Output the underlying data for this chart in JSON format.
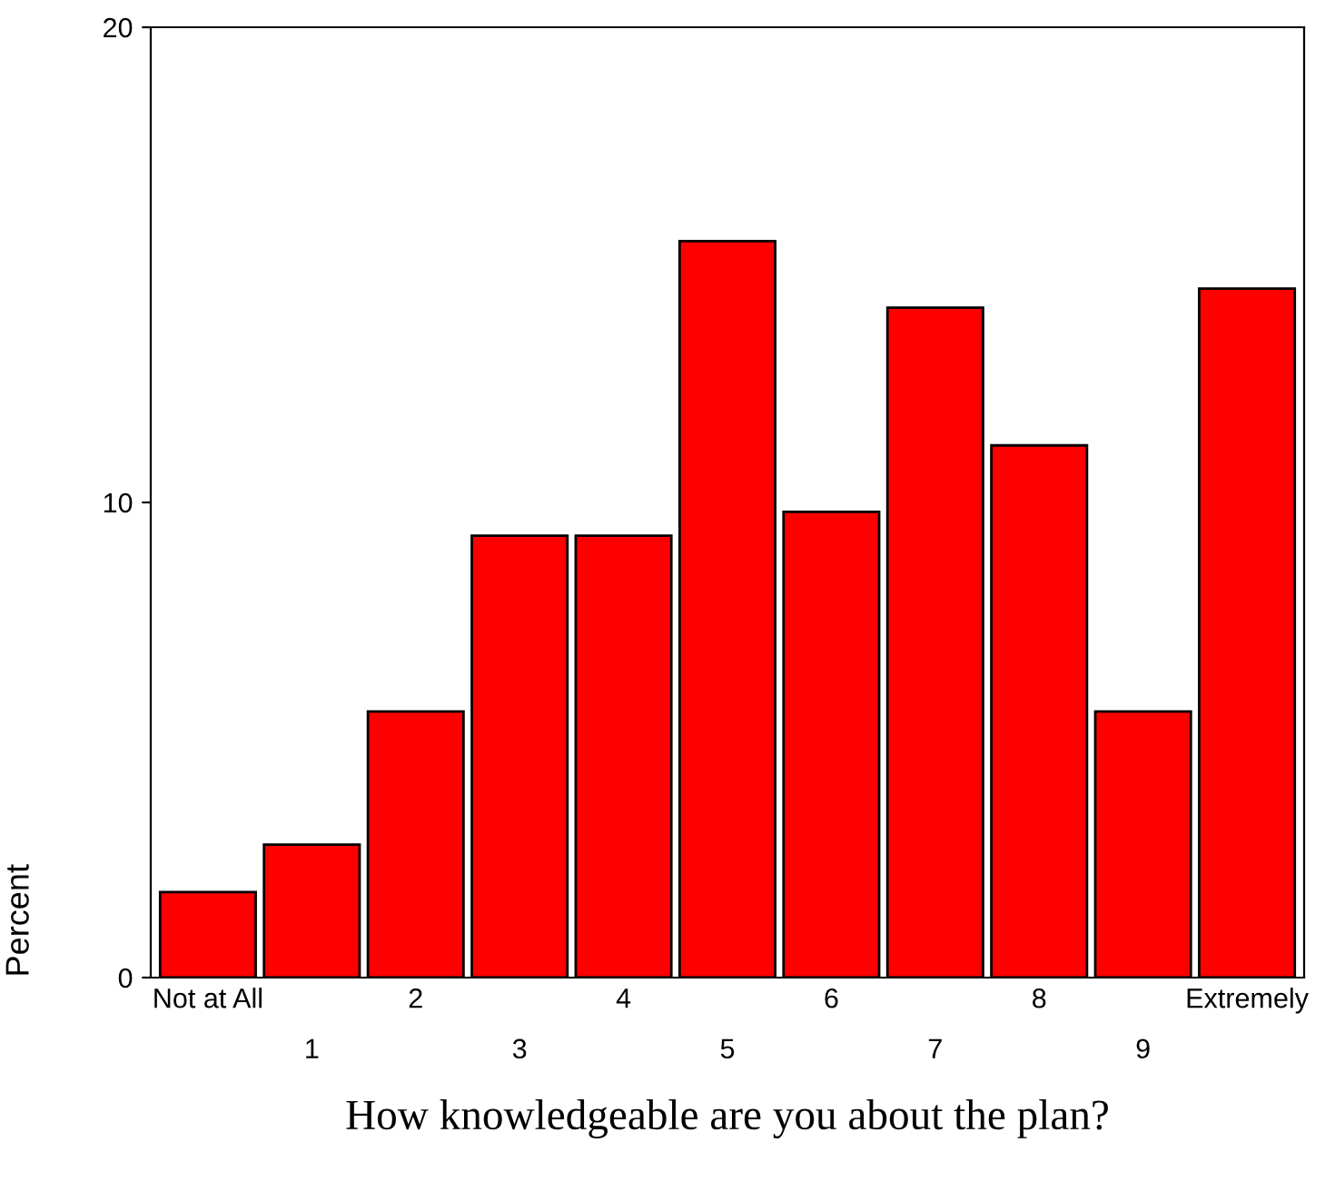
{
  "chart_data": {
    "type": "bar",
    "xlabel": "How knowledgeable are you about the plan?",
    "ylabel": "Percent",
    "categories": [
      "Not at All",
      "1",
      "2",
      "3",
      "4",
      "5",
      "6",
      "7",
      "8",
      "9",
      "Extremely"
    ],
    "values": [
      1.8,
      2.8,
      5.6,
      9.3,
      9.3,
      15.5,
      9.8,
      14.1,
      11.2,
      5.6,
      14.5
    ],
    "color": "#ff0000",
    "ylim": [
      0,
      20
    ],
    "yticks": [
      0,
      10,
      20
    ],
    "grid": false,
    "legend": false
  }
}
